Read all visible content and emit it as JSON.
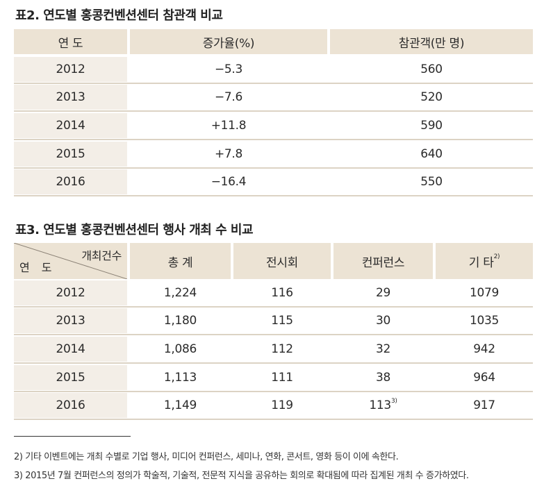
{
  "table2": {
    "title": "표2. 연도별 홍콩컨벤션센터 참관객 비교",
    "headers": {
      "year": "연  도",
      "growth": "증가율(%)",
      "visitors": "참관객(만 명)"
    },
    "rows": [
      {
        "year": "2012",
        "growth": "−5.3",
        "visitors": "560"
      },
      {
        "year": "2013",
        "growth": "−7.6",
        "visitors": "520"
      },
      {
        "year": "2014",
        "growth": "+11.8",
        "visitors": "590"
      },
      {
        "year": "2015",
        "growth": "+7.8",
        "visitors": "640"
      },
      {
        "year": "2016",
        "growth": "−16.4",
        "visitors": "550"
      }
    ]
  },
  "table3": {
    "title": "표3. 연도별 홍콩컨벤션센터 행사 개최 수 비교",
    "headers": {
      "diag_top": "개최건수",
      "diag_bottom": "연 도",
      "total": "총  계",
      "exhibition": "전시회",
      "conference": "컨퍼런스",
      "other": "기  타",
      "other_note": "2)"
    },
    "rows": [
      {
        "year": "2012",
        "total": "1,224",
        "exhibition": "116",
        "conference": "29",
        "conference_note": "",
        "other": "1079"
      },
      {
        "year": "2013",
        "total": "1,180",
        "exhibition": "115",
        "conference": "30",
        "conference_note": "",
        "other": "1035"
      },
      {
        "year": "2014",
        "total": "1,086",
        "exhibition": "112",
        "conference": "32",
        "conference_note": "",
        "other": "942"
      },
      {
        "year": "2015",
        "total": "1,113",
        "exhibition": "111",
        "conference": "38",
        "conference_note": "",
        "other": "964"
      },
      {
        "year": "2016",
        "total": "1,149",
        "exhibition": "119",
        "conference": "113",
        "conference_note": "3)",
        "other": "917"
      }
    ]
  },
  "footnotes": [
    "2) 기타 이벤트에는 개최 수별로 기업 행사, 미디어 컨퍼런스, 세미나, 연화, 콘서트, 영화 등이 이에 속한다.",
    "3) 2015년 7월 컨퍼런스의 정의가 학술적, 기술적, 전문적 지식을 공유하는 회의로 확대됨에 따라 집계된 개최 수 증가하였다."
  ]
}
